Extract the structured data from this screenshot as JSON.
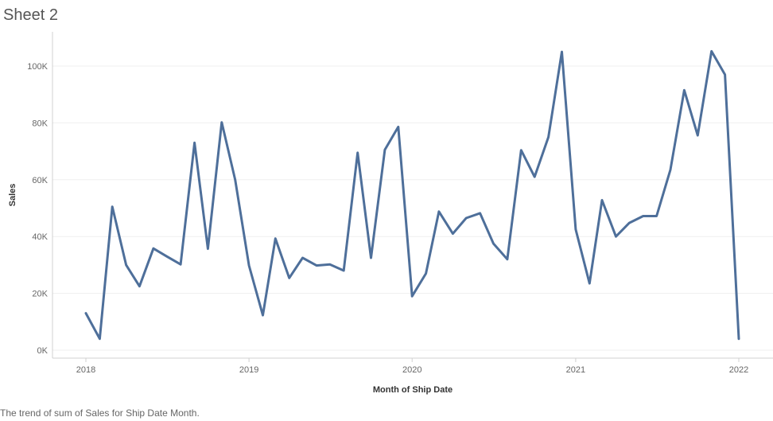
{
  "sheet": {
    "title": "Sheet 2"
  },
  "caption": "The trend of sum of Sales for Ship Date Month.",
  "chart_data": {
    "type": "line",
    "title": "Sheet 2",
    "xlabel": "Month of Ship Date",
    "ylabel": "Sales",
    "ylim": [
      0,
      110000
    ],
    "xlim": [
      "2017-12-01",
      "2022-03-01"
    ],
    "y_ticks": [
      {
        "value": 0,
        "label": "0K"
      },
      {
        "value": 20000,
        "label": "20K"
      },
      {
        "value": 40000,
        "label": "40K"
      },
      {
        "value": 60000,
        "label": "60K"
      },
      {
        "value": 80000,
        "label": "80K"
      },
      {
        "value": 100000,
        "label": "100K"
      }
    ],
    "x_ticks": [
      {
        "value": "2018-01-01",
        "label": "2018"
      },
      {
        "value": "2019-01-01",
        "label": "2019"
      },
      {
        "value": "2020-01-01",
        "label": "2020"
      },
      {
        "value": "2021-01-01",
        "label": "2021"
      },
      {
        "value": "2022-01-01",
        "label": "2022"
      }
    ],
    "grid": true,
    "line_color": "#4e6f9a",
    "series": [
      {
        "x": [
          "2018-01",
          "2018-02",
          "2018-03",
          "2018-04",
          "2018-05",
          "2018-06",
          "2018-07",
          "2018-08",
          "2018-09",
          "2018-10",
          "2018-11",
          "2018-12",
          "2019-01",
          "2019-02",
          "2019-03",
          "2019-04",
          "2019-05",
          "2019-06",
          "2019-07",
          "2019-08",
          "2019-09",
          "2019-10",
          "2019-11",
          "2019-12",
          "2020-01",
          "2020-02",
          "2020-03",
          "2020-04",
          "2020-05",
          "2020-06",
          "2020-07",
          "2020-08",
          "2020-09",
          "2020-10",
          "2020-11",
          "2020-12",
          "2021-01",
          "2021-02",
          "2021-03",
          "2021-04",
          "2021-05",
          "2021-06",
          "2021-07",
          "2021-08",
          "2021-09",
          "2021-10",
          "2021-11",
          "2021-12",
          "2022-01"
        ],
        "values": [
          13000,
          4000,
          50500,
          30000,
          22500,
          35800,
          33000,
          30200,
          73000,
          35700,
          80200,
          60000,
          29800,
          12300,
          39300,
          25400,
          32500,
          29800,
          30200,
          28000,
          69500,
          32500,
          70500,
          78600,
          19000,
          27000,
          48800,
          41000,
          46500,
          48200,
          37500,
          32000,
          70400,
          61000,
          75000,
          105000,
          42500,
          23500,
          52800,
          40000,
          44800,
          47200,
          47200,
          63500,
          91500,
          75600,
          105200,
          97000,
          4000
        ]
      }
    ]
  }
}
